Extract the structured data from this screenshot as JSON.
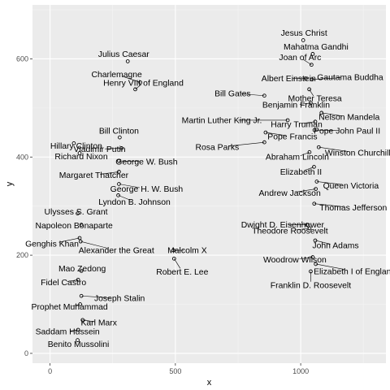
{
  "chart_data": {
    "type": "scatter",
    "title": "",
    "xlabel": "x",
    "ylabel": "y",
    "xlim": [
      -70,
      1340
    ],
    "ylim": [
      -20,
      710
    ],
    "x_ticks": [
      0,
      500,
      1000
    ],
    "y_ticks": [
      0,
      200,
      400,
      600
    ],
    "grid": true,
    "points": [
      {
        "label": "Jesus Christ",
        "x": 1010,
        "y": 638
      },
      {
        "label": "Mahatma Gandhi",
        "x": 1048,
        "y": 610
      },
      {
        "label": "Joan of Arc",
        "x": 1043,
        "y": 588
      },
      {
        "label": "Gautama Buddha",
        "x": 1045,
        "y": 558
      },
      {
        "label": "Albert Einstein",
        "x": 1020,
        "y": 560
      },
      {
        "label": "Mother Teresa",
        "x": 1034,
        "y": 538
      },
      {
        "label": "Bill Gates",
        "x": 855,
        "y": 525
      },
      {
        "label": "Benjamin Franklin",
        "x": 1040,
        "y": 510
      },
      {
        "label": "Nelson Mandela",
        "x": 1083,
        "y": 490
      },
      {
        "label": "Martin Luther King Jr.",
        "x": 948,
        "y": 475
      },
      {
        "label": "Harry Truman",
        "x": 1058,
        "y": 472
      },
      {
        "label": "Pope John Paul II",
        "x": 1055,
        "y": 455
      },
      {
        "label": "Pope Francis",
        "x": 860,
        "y": 450
      },
      {
        "label": "Rosa Parks",
        "x": 855,
        "y": 430
      },
      {
        "label": "Winston Churchill",
        "x": 1072,
        "y": 420
      },
      {
        "label": "Abraham Lincoln",
        "x": 1035,
        "y": 410
      },
      {
        "label": "Elizabeth II",
        "x": 1053,
        "y": 380
      },
      {
        "label": "Queen Victoria",
        "x": 1064,
        "y": 350
      },
      {
        "label": "Andrew Jackson",
        "x": 1060,
        "y": 335
      },
      {
        "label": "Thomas Jefferson",
        "x": 1054,
        "y": 305
      },
      {
        "label": "Dwight D. Eisenhower",
        "x": 1025,
        "y": 262
      },
      {
        "label": "Theodore Roosevelt",
        "x": 1035,
        "y": 255
      },
      {
        "label": "John Adams",
        "x": 1058,
        "y": 230
      },
      {
        "label": "Woodrow Wilson",
        "x": 1048,
        "y": 196
      },
      {
        "label": "Elizabeth I of England",
        "x": 1060,
        "y": 182
      },
      {
        "label": "Franklin D. Roosevelt",
        "x": 1040,
        "y": 167
      },
      {
        "label": "Julius Caesar",
        "x": 310,
        "y": 595
      },
      {
        "label": "Charlemagne",
        "x": 360,
        "y": 552
      },
      {
        "label": "Henry VIII of England",
        "x": 340,
        "y": 538
      },
      {
        "label": "Bill Clinton",
        "x": 278,
        "y": 440
      },
      {
        "label": "Vladimir Putin",
        "x": 285,
        "y": 418
      },
      {
        "label": "Hillary Clinton",
        "x": 95,
        "y": 428
      },
      {
        "label": "George W. Bush",
        "x": 275,
        "y": 392
      },
      {
        "label": "Richard Nixon",
        "x": 118,
        "y": 408
      },
      {
        "label": "Margaret Thatcher",
        "x": 275,
        "y": 370
      },
      {
        "label": "George H. W. Bush",
        "x": 275,
        "y": 345
      },
      {
        "label": "Lyndon B. Johnson",
        "x": 272,
        "y": 322
      },
      {
        "label": "Ulysses S. Grant",
        "x": 110,
        "y": 285
      },
      {
        "label": "Napoleon Bonaparte",
        "x": 125,
        "y": 262
      },
      {
        "label": "Genghis Khan",
        "x": 118,
        "y": 235
      },
      {
        "label": "Alexander the Great",
        "x": 122,
        "y": 228
      },
      {
        "label": "Malcolm X",
        "x": 492,
        "y": 210
      },
      {
        "label": "Robert E. Lee",
        "x": 495,
        "y": 193
      },
      {
        "label": "Mao Zedong",
        "x": 125,
        "y": 168
      },
      {
        "label": "Fidel Castro",
        "x": 112,
        "y": 150
      },
      {
        "label": "Joseph Stalin",
        "x": 125,
        "y": 117
      },
      {
        "label": "Prophet Muhammad",
        "x": 120,
        "y": 100
      },
      {
        "label": "Karl Marx",
        "x": 130,
        "y": 68
      },
      {
        "label": "Saddam Hussein",
        "x": 112,
        "y": 48
      },
      {
        "label": "Benito Mussolini",
        "x": 110,
        "y": 27
      }
    ]
  }
}
